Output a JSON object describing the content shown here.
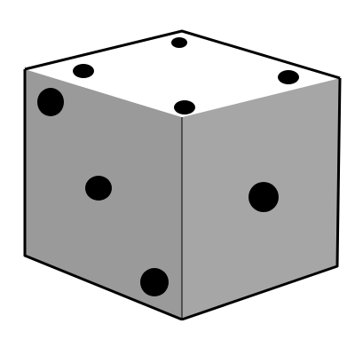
{
  "image": {
    "subject": "die",
    "faces": {
      "top": {
        "pips": 4
      },
      "left": {
        "pips": 3
      },
      "right": {
        "pips": 1
      }
    }
  },
  "colors": {
    "background": "#ffffff",
    "top_face": "#ffffff",
    "left_face": "#9a9a9a",
    "right_face": "#a6a6a6",
    "outline": "#000000",
    "pip": "#000000"
  }
}
